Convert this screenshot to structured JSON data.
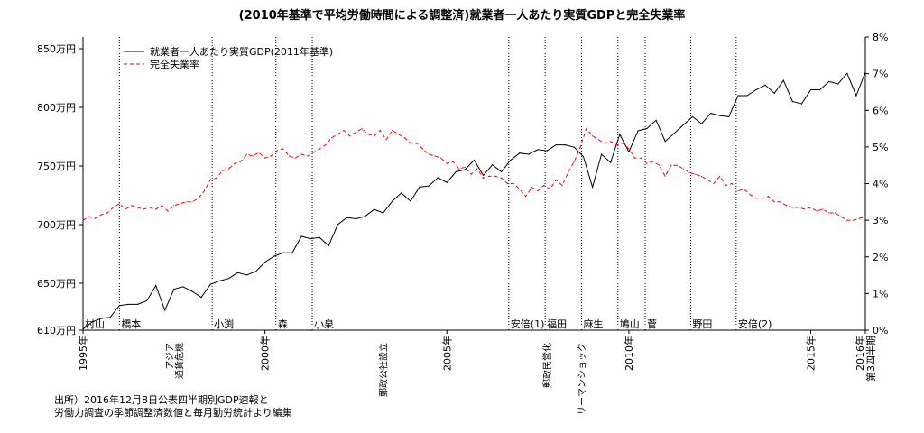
{
  "chart_data": {
    "type": "line",
    "title": "(2010年基準で平均労働時間による調整済)就業者一人あたり実質GDPと完全失業率",
    "x_start_label": "1995年",
    "x_ticks": [
      {
        "label": "1995年",
        "year": 1995
      },
      {
        "label": "2000年",
        "year": 2000
      },
      {
        "label": "2005年",
        "year": 2005
      },
      {
        "label": "2010年",
        "year": 2010
      },
      {
        "label": "2015年",
        "year": 2015
      },
      {
        "label": "2016年\n第3四半期",
        "year": 2016.5
      }
    ],
    "y_left": {
      "ticks": [
        {
          "label": "610万円",
          "value": 610
        },
        {
          "label": "650万円",
          "value": 650
        },
        {
          "label": "700万円",
          "value": 700
        },
        {
          "label": "750万円",
          "value": 750
        },
        {
          "label": "800万円",
          "value": 800
        },
        {
          "label": "850万円",
          "value": 850
        }
      ],
      "range": [
        610,
        860
      ]
    },
    "y_right": {
      "ticks": [
        "0%",
        "1%",
        "2%",
        "3%",
        "4%",
        "5%",
        "6%",
        "7%",
        "8%"
      ],
      "range": [
        0,
        8
      ]
    },
    "legend": [
      {
        "label": "就業者一人あたり実質GDP(2011年基準)",
        "style": "solid",
        "color": "#000000"
      },
      {
        "label": "完全失業率",
        "style": "dashed",
        "color": "#ff0000"
      }
    ],
    "prime_ministers": [
      {
        "label": "村山",
        "x": 1995.0
      },
      {
        "label": "橋本",
        "x": 1996.0
      },
      {
        "label": "小渕",
        "x": 1998.55
      },
      {
        "label": "森",
        "x": 2000.3
      },
      {
        "label": "小泉",
        "x": 2001.3
      },
      {
        "label": "安倍(1)",
        "x": 2006.7
      },
      {
        "label": "福田",
        "x": 2007.7
      },
      {
        "label": "麻生",
        "x": 2008.7
      },
      {
        "label": "鳩山",
        "x": 2009.7
      },
      {
        "label": "菅",
        "x": 2010.45
      },
      {
        "label": "野田",
        "x": 2011.7
      },
      {
        "label": "安倍(2)",
        "x": 2012.95
      }
    ],
    "events": [
      {
        "label": "アジア\n通貨危機",
        "x": 1997.5
      },
      {
        "label": "郵政公社設立",
        "x": 2003.25
      },
      {
        "label": "郵政民営化",
        "x": 2007.75
      },
      {
        "label": "リーマンショック",
        "x": 2008.7
      }
    ],
    "series": [
      {
        "name": "就業者一人あたり実質GDP(2011年基準)",
        "axis": "left",
        "color": "#000000",
        "x_start": 1995.0,
        "x_step": 0.25,
        "values": [
          611,
          617,
          620,
          621,
          631,
          632,
          632,
          635,
          648,
          627,
          645,
          647,
          643,
          638,
          649,
          652,
          654,
          659,
          657,
          660,
          668,
          673,
          676,
          676,
          690,
          688,
          689,
          682,
          700,
          706,
          705,
          707,
          713,
          710,
          720,
          727,
          720,
          732,
          733,
          740,
          736,
          745,
          747,
          755,
          742,
          751,
          745,
          755,
          761,
          760,
          764,
          763,
          768,
          768,
          766,
          758,
          732,
          760,
          753,
          777,
          762,
          780,
          782,
          789,
          771,
          778,
          785,
          792,
          786,
          795,
          793,
          792,
          810,
          810,
          815,
          819,
          812,
          823,
          805,
          803,
          815,
          815,
          822,
          820,
          829,
          810,
          830,
          827
        ]
      },
      {
        "name": "完全失業率",
        "axis": "right",
        "color": "#ff0000",
        "x_start": 1995.0,
        "x_step": 0.166667,
        "values": [
          3.0,
          3.1,
          3.05,
          3.15,
          3.2,
          3.35,
          3.45,
          3.3,
          3.4,
          3.35,
          3.3,
          3.35,
          3.3,
          3.4,
          3.25,
          3.4,
          3.45,
          3.5,
          3.5,
          3.6,
          3.8,
          4.1,
          4.15,
          4.35,
          4.4,
          4.55,
          4.6,
          4.8,
          4.75,
          4.85,
          4.7,
          4.75,
          4.9,
          4.95,
          4.75,
          4.7,
          4.8,
          4.75,
          4.85,
          4.95,
          5.05,
          5.25,
          5.35,
          5.45,
          5.3,
          5.4,
          5.5,
          5.35,
          5.3,
          5.45,
          5.2,
          5.45,
          5.35,
          5.25,
          5.1,
          5.1,
          4.95,
          4.8,
          4.75,
          4.7,
          4.55,
          4.6,
          4.4,
          4.45,
          4.25,
          4.4,
          4.15,
          4.2,
          4.2,
          4.15,
          4.0,
          4.0,
          3.85,
          3.65,
          3.9,
          3.8,
          3.95,
          3.85,
          4.1,
          3.95,
          4.3,
          4.6,
          5.0,
          5.5,
          5.3,
          5.2,
          5.1,
          5.15,
          5.05,
          5.1,
          4.95,
          4.7,
          4.7,
          4.55,
          4.6,
          4.5,
          4.2,
          4.5,
          4.5,
          4.4,
          4.3,
          4.25,
          4.2,
          4.1,
          4.0,
          4.2,
          3.95,
          4.0,
          3.8,
          3.85,
          3.7,
          3.6,
          3.6,
          3.65,
          3.5,
          3.5,
          3.4,
          3.35,
          3.35,
          3.3,
          3.35,
          3.25,
          3.3,
          3.2,
          3.2,
          3.1,
          3.0,
          3.0,
          3.05,
          3.1
        ]
      }
    ]
  },
  "source_note": [
    "出所）2016年12月8日公表四半期別GDP速報と",
    "労働力調査の季節調整済数値と毎月勤労統計より編集"
  ]
}
